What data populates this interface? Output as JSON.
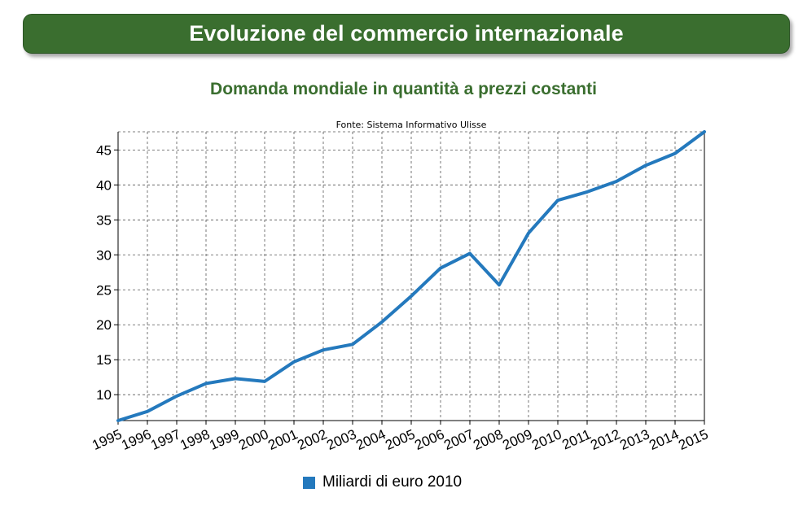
{
  "header": {
    "title": "Evoluzione del commercio internazionale",
    "subtitle": "Domanda mondiale in quantità a prezzi costanti"
  },
  "colors": {
    "banner": "#3a6e2f",
    "subtitle": "#3a6e2f",
    "series": "#2479bd"
  },
  "chart_data": {
    "type": "line",
    "source_note": "Fonte: Sistema Informativo Ulisse",
    "x": [
      "1995",
      "1996",
      "1997",
      "1998",
      "1999",
      "2000",
      "2001",
      "2002",
      "2003",
      "2004",
      "2005",
      "2006",
      "2007",
      "2008",
      "2009",
      "2010",
      "2011",
      "2012",
      "2013",
      "2014",
      "2015"
    ],
    "series": [
      {
        "name": "Miliardi di euro 2010",
        "values": [
          6.3,
          7.6,
          9.8,
          11.6,
          12.3,
          11.9,
          14.7,
          16.4,
          17.2,
          20.4,
          24.1,
          28.1,
          30.2,
          25.7,
          33.1,
          37.8,
          39.0,
          40.5,
          42.8,
          44.5,
          47.6
        ]
      }
    ],
    "yticks": [
      10,
      15,
      20,
      25,
      30,
      35,
      40,
      45
    ],
    "ylim": [
      6.3,
      47.6
    ],
    "grid": true,
    "legend_position": "bottom",
    "xlabel": "",
    "ylabel": ""
  }
}
